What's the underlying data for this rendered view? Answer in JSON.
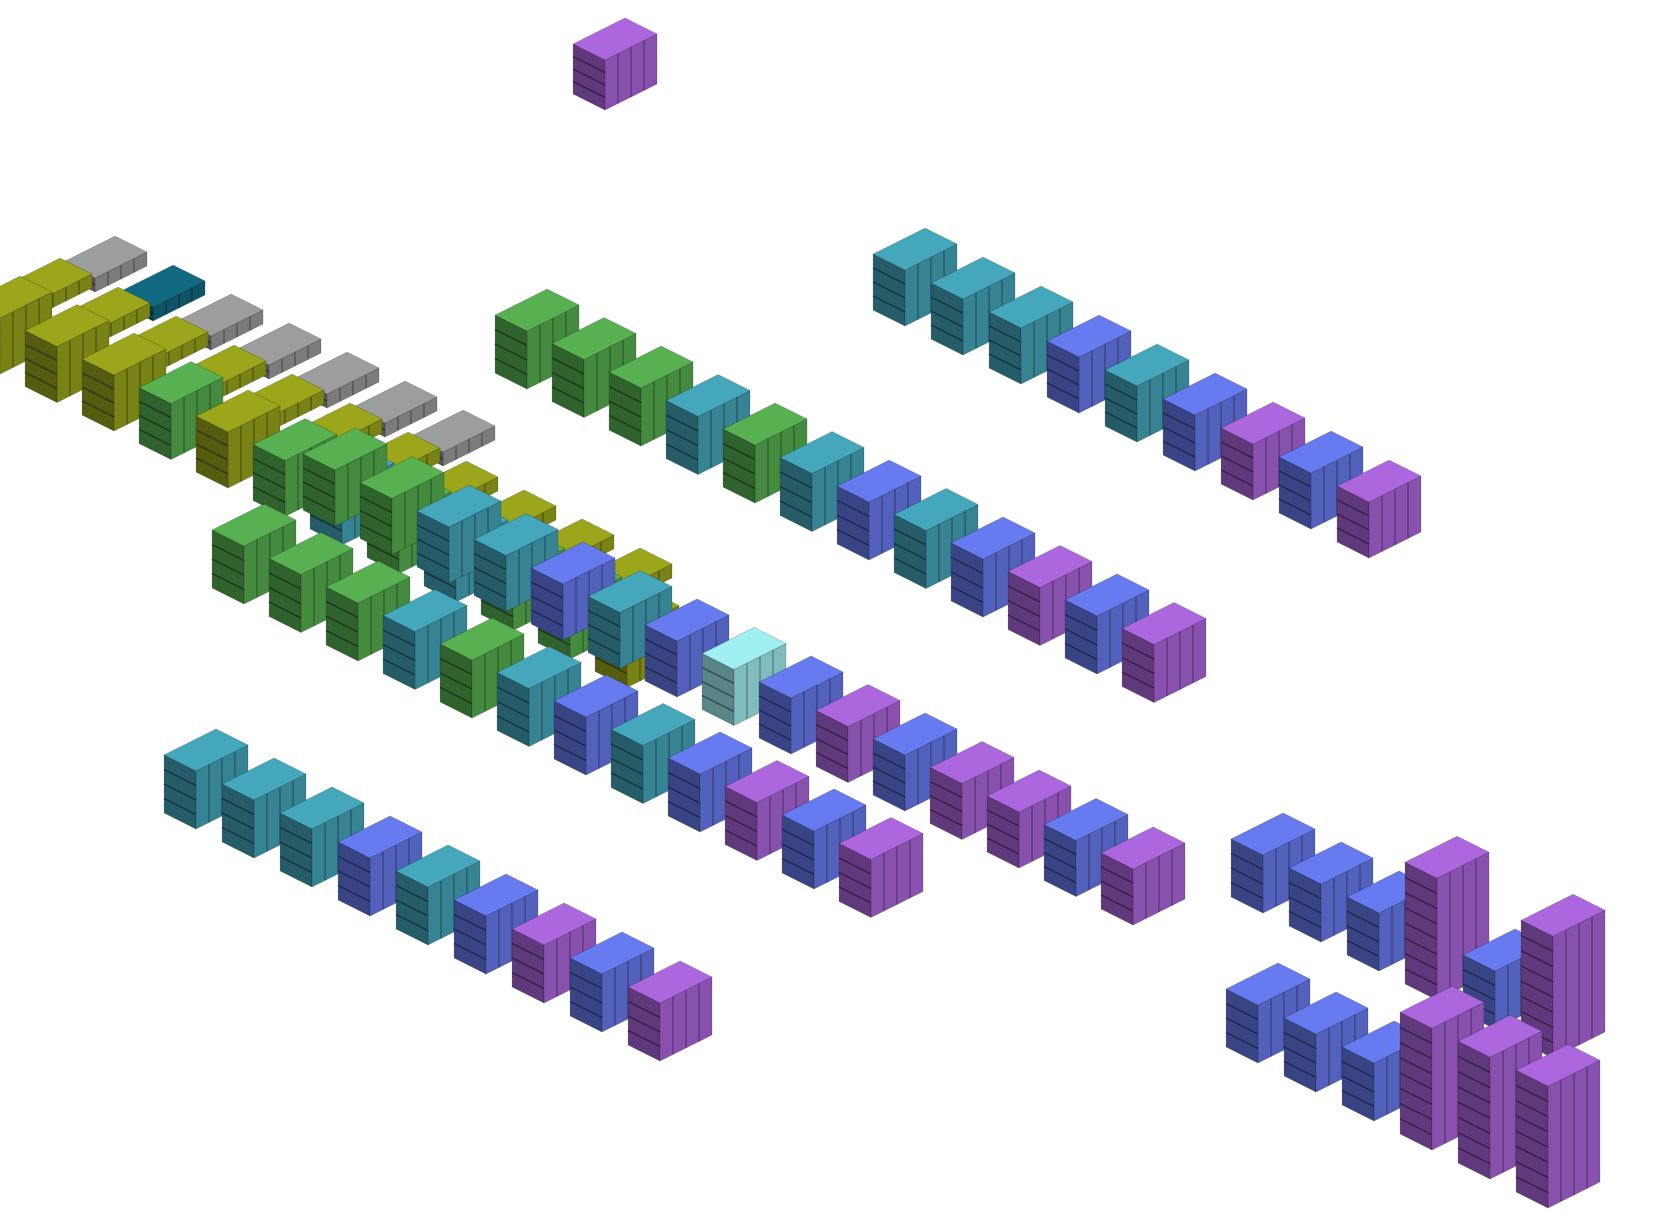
{
  "scene": {
    "background": "#ffffff",
    "palette": {
      "olive": "#8a9418",
      "gray": "#8c8c8c",
      "green": "#4e9e48",
      "teal": "#3d95a8",
      "blue": "#5c6ed6",
      "purple": "#9a5cc6",
      "darkteal": "#0f5f74",
      "lightteal": "#8fd6d8"
    },
    "groups": [
      {
        "id": "lone-cube",
        "blocks": [
          "purple"
        ]
      },
      {
        "id": "upper-right-row",
        "blocks": [
          "teal",
          "teal",
          "teal",
          "blue",
          "teal",
          "blue",
          "purple",
          "blue",
          "purple"
        ]
      },
      {
        "id": "back-gray-row",
        "blocks": [
          "gray",
          "darkteal",
          "gray",
          "gray",
          "gray",
          "gray",
          "gray"
        ]
      },
      {
        "id": "back-olive-row",
        "blocks": [
          "olive",
          "olive",
          "olive",
          "olive",
          "olive",
          "olive",
          "olive",
          "olive",
          "olive",
          "olive",
          "olive"
        ]
      },
      {
        "id": "olive-green-row",
        "blocks": [
          "olive",
          "olive",
          "olive",
          "green",
          "olive",
          "green",
          "teal",
          "green",
          "teal",
          "green",
          "green",
          "olive"
        ]
      },
      {
        "id": "green-teal-row",
        "blocks": [
          "green",
          "green",
          "green",
          "teal",
          "green",
          "teal",
          "blue",
          "teal",
          "blue",
          "purple",
          "blue",
          "purple"
        ]
      },
      {
        "id": "middle-dense-row",
        "blocks": [
          "green",
          "green",
          "teal",
          "teal",
          "blue",
          "teal",
          "blue",
          "lightteal",
          "blue",
          "purple",
          "blue",
          "purple",
          "purple",
          "blue",
          "purple"
        ]
      },
      {
        "id": "mid-lower-row",
        "blocks": [
          "green",
          "green",
          "green",
          "teal",
          "green",
          "teal",
          "blue",
          "teal",
          "blue",
          "purple",
          "blue",
          "purple"
        ]
      },
      {
        "id": "lower-left-row",
        "blocks": [
          "teal",
          "teal",
          "teal",
          "blue",
          "teal",
          "blue",
          "purple",
          "blue",
          "purple"
        ]
      },
      {
        "id": "right-mid-row",
        "blocks": [
          "blue",
          "blue",
          "blue",
          "purple",
          "blue",
          "purple"
        ]
      },
      {
        "id": "right-bottom-row",
        "blocks": [
          "blue",
          "blue",
          "blue",
          "purple",
          "purple",
          "purple"
        ]
      }
    ]
  }
}
